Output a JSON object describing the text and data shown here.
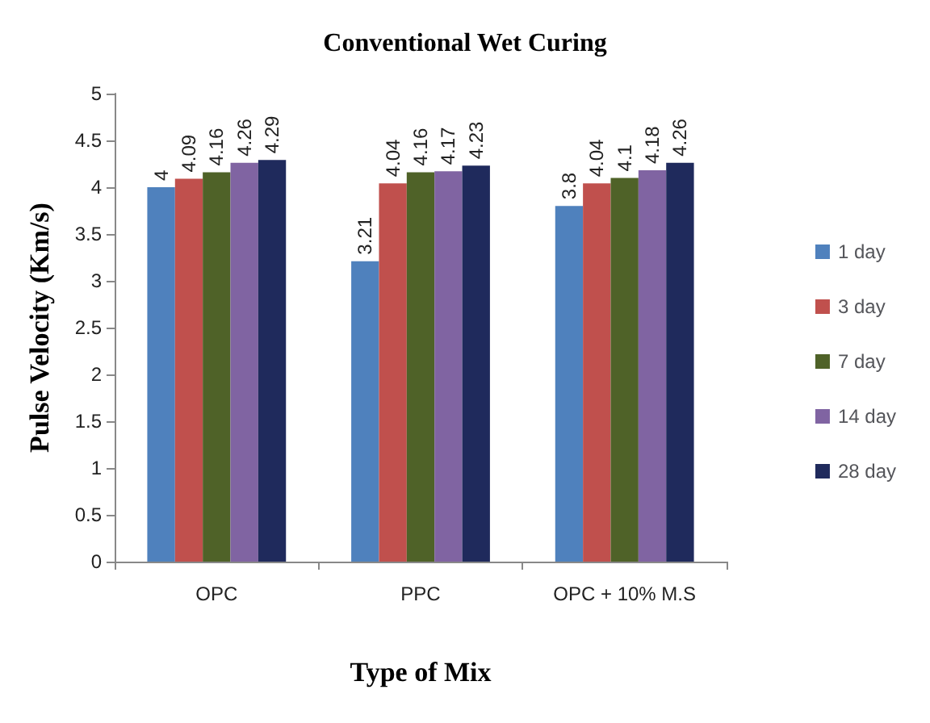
{
  "chart_data": {
    "type": "bar",
    "title": "Conventional Wet Curing",
    "xlabel": "Type of Mix",
    "ylabel": "Pulse Velocity (Km/s)",
    "categories": [
      "OPC",
      "PPC",
      "OPC + 10% M.S"
    ],
    "series": [
      {
        "name": "1 day",
        "color": "#4f81bd",
        "values": [
          4,
          3.21,
          3.8
        ]
      },
      {
        "name": "3 day",
        "color": "#c0504d",
        "values": [
          4.09,
          4.04,
          4.04
        ]
      },
      {
        "name": "7 day",
        "color": "#4f6228",
        "values": [
          4.16,
          4.16,
          4.1
        ]
      },
      {
        "name": "14 day",
        "color": "#8064a2",
        "values": [
          4.26,
          4.17,
          4.18
        ]
      },
      {
        "name": "28 day",
        "color": "#1f2a5c",
        "values": [
          4.29,
          4.23,
          4.26
        ]
      }
    ],
    "ylim": [
      0,
      5
    ],
    "yticks": [
      0,
      0.5,
      1,
      1.5,
      2,
      2.5,
      3,
      3.5,
      4,
      4.5,
      5
    ],
    "grid": false,
    "legend": "right",
    "data_labels": true
  }
}
